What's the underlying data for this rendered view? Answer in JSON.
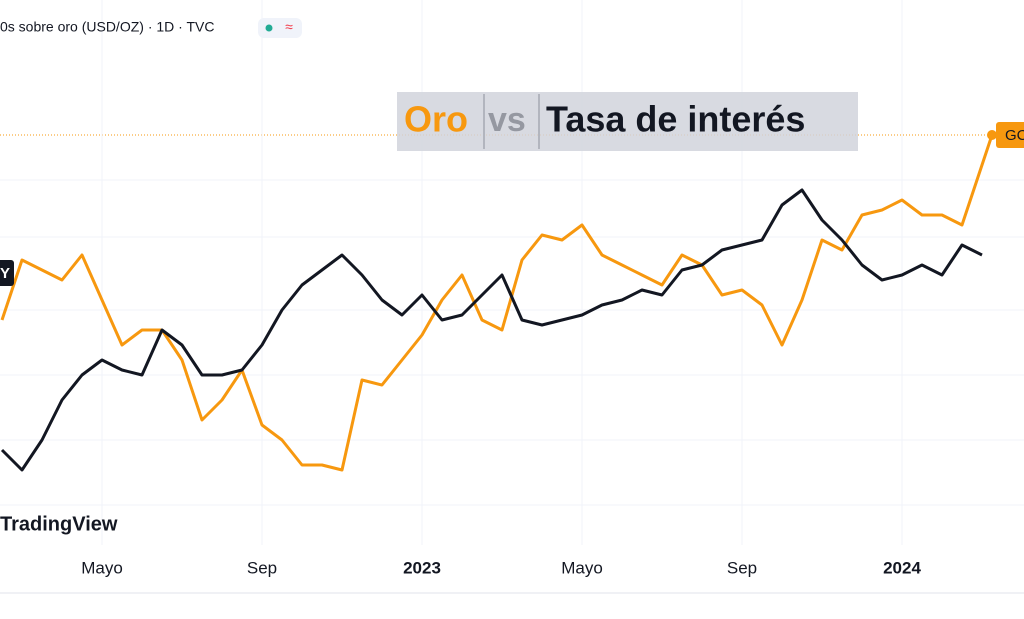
{
  "chart_data": {
    "type": "line",
    "header": "0s sobre oro (USD/OZ) · 1D · TVC",
    "badge": "≈",
    "title_parts": [
      "Oro",
      "vs",
      "Tasa de interés"
    ],
    "watermark": "TradingView",
    "x": [
      1.5,
      2.0,
      2.5,
      3.0,
      3.5,
      4.0,
      4.5,
      5.0,
      5.5,
      6.0,
      6.5,
      7.0,
      7.5,
      8.0,
      8.5,
      9.0,
      9.5,
      10.0,
      10.5,
      11.0,
      11.5,
      12.0,
      12.5,
      13.0,
      13.5,
      14.0,
      14.5,
      15.0,
      15.5,
      16.0,
      16.5,
      17.0,
      17.5,
      18.0,
      18.5,
      19.0,
      19.5,
      20.0,
      20.5,
      21.0,
      21.5,
      22.0,
      22.5,
      23.0,
      23.5,
      24.0,
      24.5,
      25.0,
      25.5,
      26.0,
      26.25
    ],
    "xlim": [
      1.45,
      27.05
    ],
    "xticks": [
      {
        "value": 4,
        "label": "Mayo"
      },
      {
        "value": 8,
        "label": "Sep"
      },
      {
        "value": 12,
        "label": "2023"
      },
      {
        "value": 16,
        "label": "Mayo"
      },
      {
        "value": 20,
        "label": "Sep"
      },
      {
        "value": 24,
        "label": "2024"
      }
    ],
    "ylim": [
      0,
      100
    ],
    "series": [
      {
        "name": "GC",
        "color": "#f7980f",
        "values": [
          45,
          60,
          57.5,
          55,
          61.25,
          50,
          38.75,
          42.5,
          42.5,
          35,
          20,
          25,
          32.5,
          18.75,
          15,
          8.75,
          8.75,
          7.5,
          30,
          28.75,
          35,
          41.25,
          50,
          56.25,
          45,
          42.5,
          60,
          66.25,
          65,
          68.75,
          61.25,
          58.75,
          56.25,
          53.75,
          61.25,
          58.75,
          51.25,
          52.5,
          48.75,
          38.75,
          50,
          65,
          62.5,
          71.25,
          72.5,
          75,
          71.25,
          71.25,
          68.75,
          83.75,
          91.25
        ]
      },
      {
        "name": "Y",
        "color": "#131722",
        "values": [
          12.5,
          7.5,
          15,
          25,
          31.25,
          35,
          32.5,
          31.25,
          42.5,
          38.75,
          31.25,
          31.25,
          32.5,
          38.75,
          47.5,
          53.75,
          57.5,
          61.25,
          56.25,
          50,
          46.25,
          51.25,
          45,
          46.25,
          51.25,
          56.25,
          45,
          43.75,
          45,
          46.25,
          48.75,
          50,
          52.5,
          51.25,
          57.5,
          58.75,
          62.5,
          63.75,
          65,
          73.75,
          77.5,
          70,
          65,
          58.75,
          55,
          56.25,
          58.75,
          56.25,
          63.75,
          61.25,
          null
        ]
      }
    ],
    "grid": true
  }
}
